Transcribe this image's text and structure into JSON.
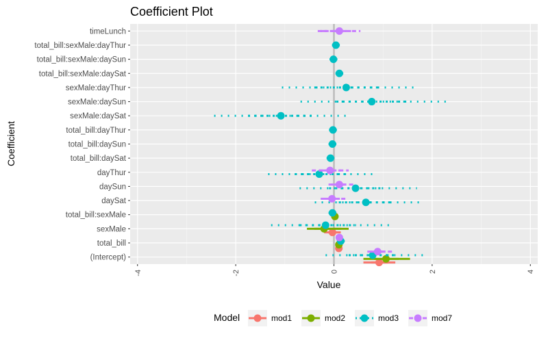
{
  "chart_data": {
    "type": "scatter",
    "title": "Coefficient Plot",
    "xlabel": "Value",
    "ylabel": "Coefficient",
    "xlim": [
      -4.15,
      4.15
    ],
    "xticks": [
      -4,
      -2,
      0,
      2,
      4
    ],
    "grid": true,
    "legend_position": "bottom",
    "legend_title": "Model",
    "categories": [
      "timeLunch",
      "total_bill:sexMale:dayThur",
      "total_bill:sexMale:daySun",
      "total_bill:sexMale:daySat",
      "sexMale:dayThur",
      "sexMale:daySun",
      "sexMale:daySat",
      "total_bill:dayThur",
      "total_bill:daySun",
      "total_bill:daySat",
      "dayThur",
      "daySun",
      "daySat",
      "total_bill:sexMale",
      "sexMale",
      "total_bill",
      "(Intercept)"
    ],
    "series": [
      {
        "name": "mod1",
        "color": "#F8766D",
        "line": "solid",
        "points": [
          {
            "coef": "sexMale",
            "value": -0.03,
            "inner": [
              -0.12,
              0.06
            ],
            "outer": [
              -0.2,
              0.14
            ]
          },
          {
            "coef": "total_bill",
            "value": 0.1,
            "inner": [
              0.09,
              0.11
            ],
            "outer": [
              0.08,
              0.12
            ]
          },
          {
            "coef": "(Intercept)",
            "value": 0.92,
            "inner": [
              0.76,
              1.1
            ],
            "outer": [
              0.6,
              1.25
            ]
          }
        ]
      },
      {
        "name": "mod2",
        "color": "#7CAE00",
        "line": "solid",
        "points": [
          {
            "coef": "total_bill:sexMale",
            "value": 0.02,
            "inner": [
              -0.01,
              0.05
            ],
            "outer": [
              -0.04,
              0.08
            ]
          },
          {
            "coef": "sexMale",
            "value": -0.2,
            "inner": [
              -0.4,
              0.15
            ],
            "outer": [
              -0.55,
              0.3
            ]
          },
          {
            "coef": "total_bill",
            "value": 0.1,
            "inner": [
              0.08,
              0.12
            ],
            "outer": [
              0.06,
              0.14
            ]
          },
          {
            "coef": "(Intercept)",
            "value": 1.06,
            "inner": [
              0.82,
              1.32
            ],
            "outer": [
              0.6,
              1.55
            ]
          }
        ]
      },
      {
        "name": "mod3",
        "color": "#00BFC4",
        "line": "dotted",
        "points": [
          {
            "coef": "total_bill:sexMale:dayThur",
            "value": 0.04,
            "inner": [
              0.0,
              0.08
            ],
            "outer": [
              -0.04,
              0.12
            ]
          },
          {
            "coef": "total_bill:sexMale:daySun",
            "value": -0.01,
            "inner": [
              -0.05,
              0.03
            ],
            "outer": [
              -0.09,
              0.07
            ]
          },
          {
            "coef": "total_bill:sexMale:daySat",
            "value": 0.11,
            "inner": [
              0.07,
              0.15
            ],
            "outer": [
              0.03,
              0.19
            ]
          },
          {
            "coef": "sexMale:dayThur",
            "value": 0.25,
            "inner": [
              -0.4,
              0.9
            ],
            "outer": [
              -1.06,
              1.72
            ]
          },
          {
            "coef": "sexMale:daySun",
            "value": 0.77,
            "inner": [
              0.05,
              1.5
            ],
            "outer": [
              -0.68,
              2.28
            ]
          },
          {
            "coef": "sexMale:daySat",
            "value": -1.08,
            "inner": [
              -1.75,
              -0.4
            ],
            "outer": [
              -2.44,
              0.35
            ]
          },
          {
            "coef": "total_bill:dayThur",
            "value": -0.02,
            "inner": [
              -0.06,
              0.02
            ],
            "outer": [
              -0.1,
              0.06
            ]
          },
          {
            "coef": "total_bill:daySun",
            "value": -0.03,
            "inner": [
              -0.07,
              0.01
            ],
            "outer": [
              -0.11,
              0.05
            ]
          },
          {
            "coef": "total_bill:daySat",
            "value": -0.07,
            "inner": [
              -0.11,
              -0.03
            ],
            "outer": [
              -0.15,
              0.01
            ]
          },
          {
            "coef": "dayThur",
            "value": -0.3,
            "inner": [
              -0.8,
              0.25
            ],
            "outer": [
              -1.34,
              0.86
            ]
          },
          {
            "coef": "daySun",
            "value": 0.44,
            "inner": [
              -0.1,
              1.0
            ],
            "outer": [
              -0.7,
              1.69
            ]
          },
          {
            "coef": "daySat",
            "value": 0.65,
            "inner": [
              0.1,
              1.2
            ],
            "outer": [
              -0.39,
              1.82
            ]
          },
          {
            "coef": "total_bill:sexMale",
            "value": -0.03,
            "inner": [
              -0.07,
              0.01
            ],
            "outer": [
              -0.11,
              0.05
            ]
          },
          {
            "coef": "sexMale",
            "value": -0.17,
            "inner": [
              -0.7,
              0.45
            ],
            "outer": [
              -1.28,
              1.14
            ]
          },
          {
            "coef": "total_bill",
            "value": 0.14,
            "inner": [
              0.1,
              0.18
            ],
            "outer": [
              0.06,
              0.22
            ]
          },
          {
            "coef": "(Intercept)",
            "value": 0.79,
            "inner": [
              0.3,
              1.3
            ],
            "outer": [
              -0.17,
              1.87
            ]
          }
        ]
      },
      {
        "name": "mod7",
        "color": "#C77CFF",
        "line": "dashed",
        "points": [
          {
            "coef": "timeLunch",
            "value": 0.11,
            "inner": [
              -0.28,
              0.35
            ],
            "outer": [
              -0.33,
              0.54
            ]
          },
          {
            "coef": "dayThur",
            "value": -0.08,
            "inner": [
              -0.3,
              0.15
            ],
            "outer": [
              -0.45,
              0.3
            ]
          },
          {
            "coef": "daySun",
            "value": 0.11,
            "inner": [
              -0.05,
              0.25
            ],
            "outer": [
              -0.11,
              0.41
            ]
          },
          {
            "coef": "daySat",
            "value": -0.04,
            "inner": [
              -0.2,
              0.12
            ],
            "outer": [
              -0.27,
              0.24
            ]
          },
          {
            "coef": "total_bill",
            "value": 0.11,
            "inner": [
              0.09,
              0.13
            ],
            "outer": [
              0.07,
              0.15
            ]
          },
          {
            "coef": "(Intercept)",
            "value": 0.89,
            "inner": [
              0.75,
              1.05
            ],
            "outer": [
              0.68,
              1.2
            ]
          }
        ]
      }
    ]
  }
}
